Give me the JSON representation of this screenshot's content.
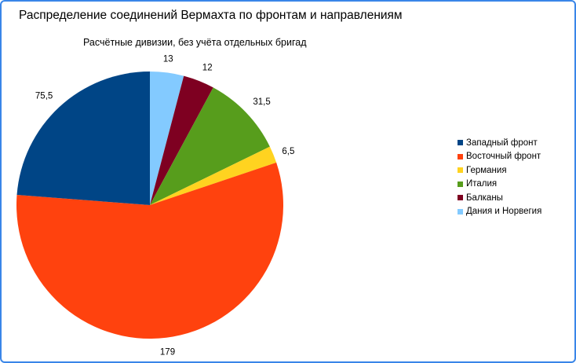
{
  "chart_data": {
    "type": "pie",
    "title": "Распределение соединений Вермахта по фронтам и направлениям",
    "subtitle": "Расчётные дивизии, без учёта отдельных бригад",
    "slices": [
      {
        "label": "Западный фронт",
        "value": 75.5,
        "value_label": "75,5",
        "color": "#004586"
      },
      {
        "label": "Восточный фронт",
        "value": 179,
        "value_label": "179",
        "color": "#ff420e"
      },
      {
        "label": "Германия",
        "value": 6.5,
        "value_label": "6,5",
        "color": "#ffd320"
      },
      {
        "label": "Италия",
        "value": 31.5,
        "value_label": "31,5",
        "color": "#579d1c"
      },
      {
        "label": "Балканы",
        "value": 12,
        "value_label": "12",
        "color": "#7e0021"
      },
      {
        "label": "Дания и Норвегия",
        "value": 13,
        "value_label": "13",
        "color": "#83caff"
      }
    ],
    "legend_position": "right"
  }
}
